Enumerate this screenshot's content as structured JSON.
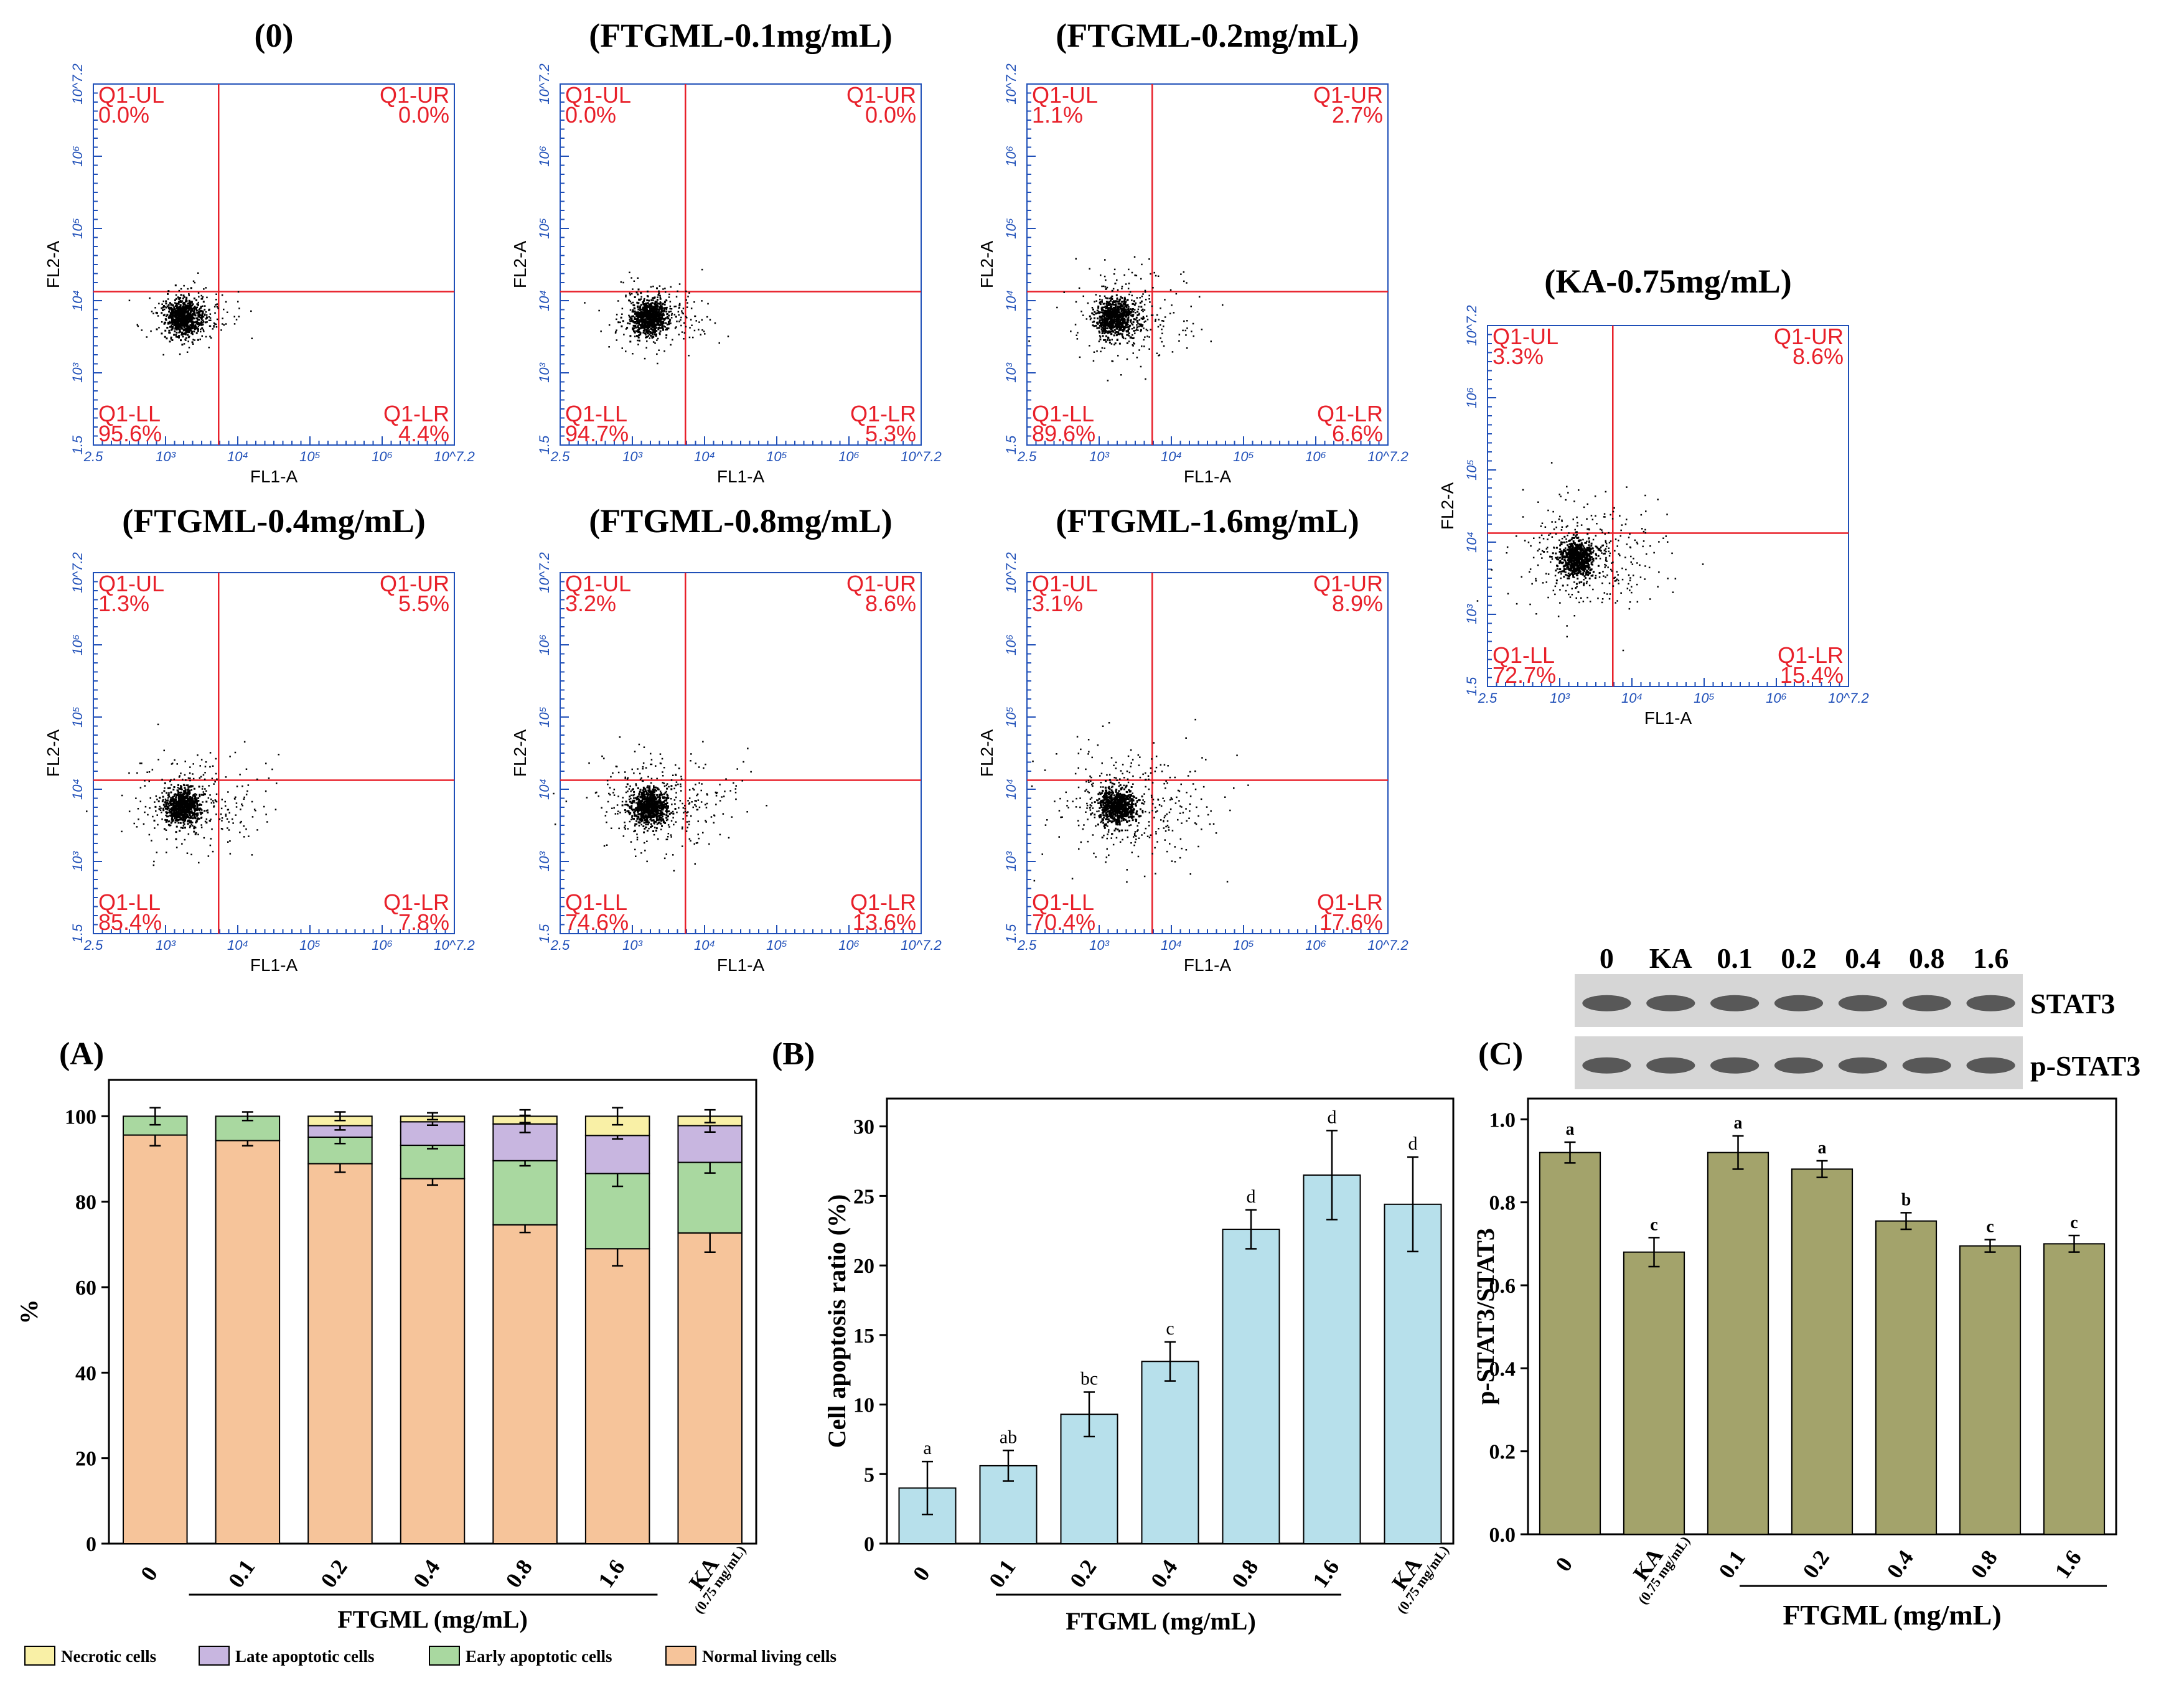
{
  "flow_panels": [
    {
      "title": "(0)",
      "ul_name": "Q1-UL",
      "ul": "0.0%",
      "ur_name": "Q1-UR",
      "ur": "0.0%",
      "ll_name": "Q1-LL",
      "ll": "95.6%",
      "lr_name": "Q1-LR",
      "lr": "4.4%",
      "spread": 0.6
    },
    {
      "title": "(FTGML-0.1mg/mL)",
      "ul_name": "Q1-UL",
      "ul": "0.0%",
      "ur_name": "Q1-UR",
      "ur": "0.0%",
      "ll_name": "Q1-LL",
      "ll": "94.7%",
      "lr_name": "Q1-LR",
      "lr": "5.3%",
      "spread": 0.7
    },
    {
      "title": "(FTGML-0.2mg/mL)",
      "ul_name": "Q1-UL",
      "ul": "1.1%",
      "ur_name": "Q1-UR",
      "ur": "2.7%",
      "ll_name": "Q1-LL",
      "ll": "89.6%",
      "lr_name": "Q1-LR",
      "lr": "6.6%",
      "spread": 0.85
    },
    {
      "title": "(FTGML-0.4mg/mL)",
      "ul_name": "Q1-UL",
      "ul": "1.3%",
      "ur_name": "Q1-UR",
      "ur": "5.5%",
      "ll_name": "Q1-LL",
      "ll": "85.4%",
      "lr_name": "Q1-LR",
      "lr": "7.8%",
      "spread": 0.9
    },
    {
      "title": "(FTGML-0.8mg/mL)",
      "ul_name": "Q1-UL",
      "ul": "3.2%",
      "ur_name": "Q1-UR",
      "ur": "8.6%",
      "ll_name": "Q1-LL",
      "ll": "74.6%",
      "lr_name": "Q1-LR",
      "lr": "13.6%",
      "spread": 1.0
    },
    {
      "title": "(FTGML-1.6mg/mL)",
      "ul_name": "Q1-UL",
      "ul": "3.1%",
      "ur_name": "Q1-UR",
      "ur": "8.9%",
      "ll_name": "Q1-LL",
      "ll": "70.4%",
      "lr_name": "Q1-LR",
      "lr": "17.6%",
      "spread": 1.1
    },
    {
      "title": "(KA-0.75mg/mL)",
      "ul_name": "Q1-UL",
      "ul": "3.3%",
      "ur_name": "Q1-UR",
      "ur": "8.6%",
      "ll_name": "Q1-LL",
      "ll": "72.7%",
      "lr_name": "Q1-LR",
      "lr": "15.4%",
      "spread": 1.05
    }
  ],
  "flow_axes": {
    "x_name": "FL1-A",
    "y_name": "FL2-A",
    "x_ticks": [
      "2.5",
      "10³",
      "10⁴",
      "10⁵",
      "10⁶",
      "10^7.2"
    ],
    "y_ticks": [
      "1.5",
      "10³",
      "10⁴",
      "10⁵",
      "10⁶",
      "10^7.2"
    ]
  },
  "chart_data": [
    {
      "id": "A",
      "label": "(A)",
      "type": "bar",
      "stacked": true,
      "ylabel": "%",
      "xlabel": "FTGML (mg/mL)",
      "categories": [
        "0",
        "0.1",
        "0.2",
        "0.4",
        "0.8",
        "1.6",
        "KA"
      ],
      "ka_sub": "(0.75 mg/mL)",
      "ylim": [
        0,
        100
      ],
      "yticks": [
        "0",
        "20",
        "40",
        "60",
        "80",
        "100"
      ],
      "series": [
        {
          "name": "Normal living cells",
          "color": "#f6c49a",
          "values": [
            95.6,
            94.3,
            88.9,
            85.4,
            74.6,
            69.0,
            72.7
          ],
          "err": [
            2.5,
            1.2,
            2.0,
            1.5,
            1.8,
            4.0,
            4.5
          ]
        },
        {
          "name": "Early apoptotic cells",
          "color": "#a9d8a0",
          "values": [
            4.4,
            5.7,
            6.2,
            7.8,
            15.0,
            17.6,
            16.5
          ],
          "err": [
            2.0,
            1.0,
            1.5,
            0.8,
            1.2,
            3.0,
            2.5
          ]
        },
        {
          "name": "Late apoptotic cells",
          "color": "#c8b6e0",
          "values": [
            0,
            0,
            2.7,
            5.5,
            8.6,
            8.9,
            8.6
          ],
          "err": [
            0,
            0,
            1.0,
            0.8,
            2.0,
            0.8,
            1.5
          ]
        },
        {
          "name": "Necrotic cells",
          "color": "#f9f0a6",
          "values": [
            0,
            0,
            2.2,
            1.3,
            1.8,
            4.5,
            2.2
          ],
          "err": [
            0,
            0,
            1.0,
            0.8,
            1.5,
            2.0,
            1.5
          ]
        }
      ]
    },
    {
      "id": "B",
      "label": "(B)",
      "type": "bar",
      "ylabel": "Cell apoptosis ratio (%)",
      "xlabel": "FTGML (mg/mL)",
      "categories": [
        "0",
        "0.1",
        "0.2",
        "0.4",
        "0.8",
        "1.6",
        "KA"
      ],
      "ka_sub": "(0.75 mg/mL)",
      "values": [
        4.0,
        5.6,
        9.3,
        13.1,
        22.6,
        26.5,
        24.4
      ],
      "err": [
        1.9,
        1.1,
        1.6,
        1.4,
        1.4,
        3.2,
        3.4
      ],
      "letters": [
        "a",
        "ab",
        "bc",
        "c",
        "d",
        "d",
        "d"
      ],
      "ylim": [
        0,
        32
      ],
      "yticks": [
        "0",
        "5",
        "10",
        "15",
        "20",
        "25",
        "30"
      ],
      "color": "#b7e0eb"
    },
    {
      "id": "C",
      "label": "(C)",
      "type": "bar",
      "ylabel": "p-STAT3/STAT3",
      "xlabel": "FTGML (mg/mL)",
      "categories": [
        "0",
        "KA",
        "0.1",
        "0.2",
        "0.4",
        "0.8",
        "1.6"
      ],
      "ka_sub": "(0.75 mg/mL)",
      "values": [
        0.92,
        0.68,
        0.92,
        0.88,
        0.755,
        0.695,
        0.7
      ],
      "err": [
        0.025,
        0.035,
        0.04,
        0.02,
        0.02,
        0.015,
        0.02
      ],
      "letters": [
        "a",
        "c",
        "a",
        "a",
        "b",
        "c",
        "c"
      ],
      "ylim": [
        0,
        1.05
      ],
      "yticks": [
        "0.0",
        "0.2",
        "0.4",
        "0.6",
        "0.8",
        "1.0"
      ],
      "color": "#a3a36b"
    }
  ],
  "western_blot": {
    "lanes": [
      "0",
      "KA",
      "0.1",
      "0.2",
      "0.4",
      "0.8",
      "1.6"
    ],
    "bands": [
      "STAT3",
      "p-STAT3"
    ]
  }
}
